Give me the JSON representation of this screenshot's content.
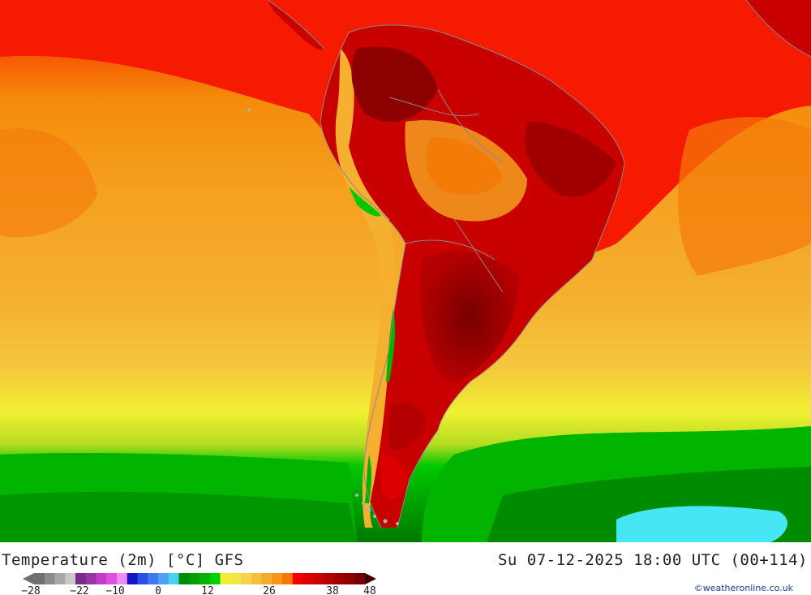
{
  "map": {
    "title": "Temperature (2m) [°C] GFS",
    "valid_time": "Su 07-12-2025 18:00 UTC (00+114)",
    "credit": "©weatheronline.co.uk",
    "legend": {
      "colors": [
        "#707070",
        "#8c8c8c",
        "#a8a8a8",
        "#c8c8c8",
        "#7a2a8c",
        "#9a32a8",
        "#c03cc8",
        "#e050e0",
        "#f08cf0",
        "#1414c8",
        "#2850e6",
        "#3c7af0",
        "#50a0f5",
        "#46d2f5",
        "#008c00",
        "#00a000",
        "#00b400",
        "#00d200",
        "#f0f032",
        "#f5e646",
        "#f5d250",
        "#f5c040",
        "#f5aa28",
        "#f59614",
        "#f57800",
        "#f00000",
        "#dc0000",
        "#c80000",
        "#b40000",
        "#a00000",
        "#8c0000",
        "#780000"
      ],
      "tick_labels": [
        "-28",
        "-22",
        "-10",
        "0",
        "12",
        "26",
        "38",
        "48"
      ]
    }
  }
}
